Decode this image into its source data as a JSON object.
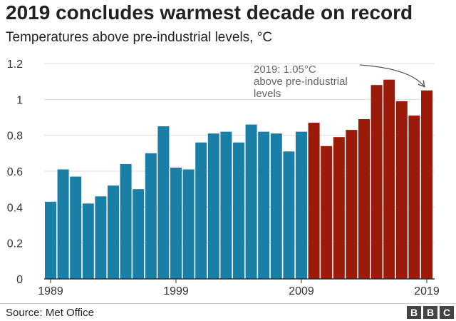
{
  "header": {
    "title": "2019 concludes warmest decade on record",
    "subtitle": "Temperatures above pre-industrial levels, °C"
  },
  "footer": {
    "source": "Source: Met Office",
    "logo": [
      "B",
      "B",
      "C"
    ]
  },
  "chart_data": {
    "type": "bar",
    "title": "2019 concludes warmest decade on record",
    "subtitle": "Temperatures above pre-industrial levels, °C",
    "xlabel": "",
    "ylabel": "",
    "categories": [
      1989,
      1990,
      1991,
      1992,
      1993,
      1994,
      1995,
      1996,
      1997,
      1998,
      1999,
      2000,
      2001,
      2002,
      2003,
      2004,
      2005,
      2006,
      2007,
      2008,
      2009,
      2010,
      2011,
      2012,
      2013,
      2014,
      2015,
      2016,
      2017,
      2018,
      2019
    ],
    "values": [
      0.43,
      0.61,
      0.57,
      0.42,
      0.46,
      0.52,
      0.64,
      0.5,
      0.7,
      0.85,
      0.62,
      0.61,
      0.76,
      0.81,
      0.82,
      0.76,
      0.86,
      0.82,
      0.81,
      0.71,
      0.82,
      0.87,
      0.74,
      0.79,
      0.83,
      0.89,
      1.08,
      1.11,
      0.99,
      0.91,
      1.05
    ],
    "x_tick_labels": [
      "1989",
      "1999",
      "2009",
      "2019"
    ],
    "y_ticks": [
      "0",
      "0.2",
      "0.4",
      "0.6",
      "0.8",
      "1",
      "1.2"
    ],
    "ylim": [
      0,
      1.2
    ],
    "grid": true,
    "colors": {
      "before_2010": "#1a7fa6",
      "from_2010": "#9b1a0a",
      "grid": "#dddddd"
    },
    "highlight_from": 2010,
    "annotation": {
      "lines": [
        "2019: 1.05°C",
        "above pre-industrial",
        "levels"
      ],
      "target": 2019
    }
  }
}
